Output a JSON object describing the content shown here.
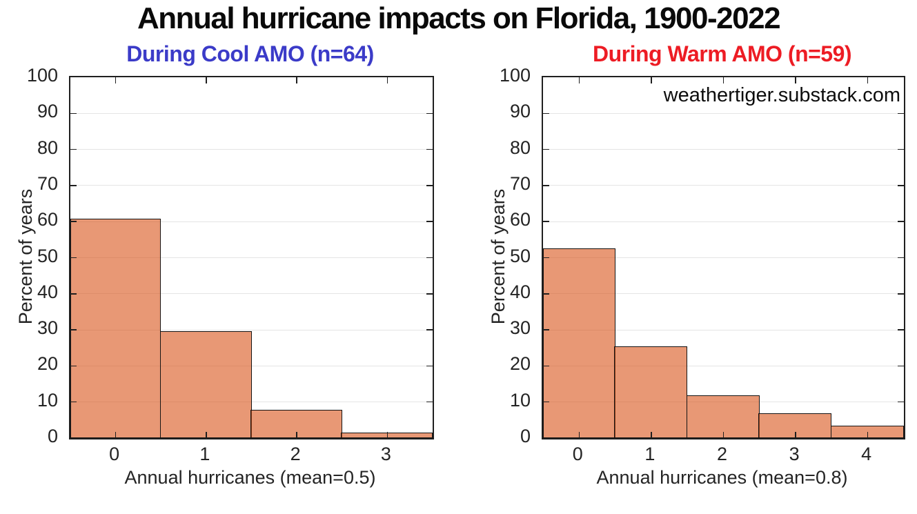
{
  "title": "Annual hurricane impacts on Florida, 1900-2022",
  "colors": {
    "bar_fill": "rgba(217,83,25,0.6)",
    "bar_fill_flat_hex": "#E89875",
    "bar_edge": "#141414",
    "grid": "#e4e4e4",
    "axis": "#1f1f1f",
    "text": "#242424",
    "title": "#0a0a0a",
    "cool_title": "#3B3BC8",
    "warm_title": "#ED1C24"
  },
  "chart_data": [
    {
      "type": "bar",
      "subtype": "histogram",
      "title": "During Cool AMO (n=64)",
      "title_color": "#3B3BC8",
      "categories": [
        0,
        1,
        2,
        3
      ],
      "values": [
        60.9,
        29.7,
        7.8,
        1.6
      ],
      "xlabel": "Annual hurricanes (mean=0.5)",
      "ylabel": "Percent of years",
      "xlim": [
        -0.5,
        3.5
      ],
      "ylim": [
        0,
        100
      ],
      "ytick_step": 10,
      "grid": "horizontal",
      "legend": "none"
    },
    {
      "type": "bar",
      "subtype": "histogram",
      "title": "During Warm AMO (n=59)",
      "title_color": "#ED1C24",
      "categories": [
        0,
        1,
        2,
        3,
        4
      ],
      "values": [
        52.5,
        25.4,
        11.9,
        6.8,
        3.4
      ],
      "xlabel": "Annual hurricanes (mean=0.8)",
      "ylabel": "Percent of years",
      "xlim": [
        -0.5,
        4.5
      ],
      "ylim": [
        0,
        100
      ],
      "ytick_step": 10,
      "grid": "horizontal",
      "legend": "none",
      "annotation": "weathertiger.substack.com"
    }
  ]
}
